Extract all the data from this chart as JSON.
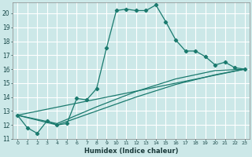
{
  "xlabel": "Humidex (Indice chaleur)",
  "bg_color": "#cce8e8",
  "grid_color": "#ffffff",
  "line_color": "#1a7a6e",
  "xlim": [
    -0.5,
    23.5
  ],
  "ylim": [
    11,
    20.8
  ],
  "xtick_labels": [
    "0",
    "1",
    "2",
    "3",
    "4",
    "5",
    "6",
    "7",
    "8",
    "9",
    "10",
    "11",
    "12",
    "13",
    "14",
    "15",
    "16",
    "17",
    "18",
    "19",
    "20",
    "21",
    "22",
    "23"
  ],
  "xticks": [
    0,
    1,
    2,
    3,
    4,
    5,
    6,
    7,
    8,
    9,
    10,
    11,
    12,
    13,
    14,
    15,
    16,
    17,
    18,
    19,
    20,
    21,
    22,
    23
  ],
  "yticks": [
    11,
    12,
    13,
    14,
    15,
    16,
    17,
    18,
    19,
    20
  ],
  "series1": [
    [
      0,
      12.7
    ],
    [
      1,
      11.8
    ],
    [
      2,
      11.4
    ],
    [
      3,
      12.3
    ],
    [
      4,
      12.0
    ],
    [
      5,
      12.1
    ],
    [
      6,
      13.9
    ],
    [
      7,
      13.8
    ],
    [
      8,
      14.6
    ],
    [
      9,
      17.5
    ],
    [
      10,
      20.2
    ],
    [
      11,
      20.3
    ],
    [
      12,
      20.2
    ],
    [
      13,
      20.2
    ],
    [
      14,
      20.6
    ],
    [
      15,
      19.4
    ],
    [
      16,
      18.1
    ],
    [
      17,
      17.3
    ],
    [
      18,
      17.3
    ],
    [
      19,
      16.9
    ],
    [
      20,
      16.3
    ],
    [
      21,
      16.5
    ],
    [
      22,
      16.1
    ],
    [
      23,
      16.0
    ]
  ],
  "series2": [
    [
      0,
      12.7
    ],
    [
      23,
      16.0
    ]
  ],
  "series3": [
    [
      0,
      12.7
    ],
    [
      4,
      12.1
    ],
    [
      8,
      13.3
    ],
    [
      12,
      14.4
    ],
    [
      16,
      15.3
    ],
    [
      20,
      15.9
    ],
    [
      23,
      16.0
    ]
  ],
  "series4": [
    [
      0,
      12.7
    ],
    [
      4,
      12.0
    ],
    [
      8,
      13.0
    ],
    [
      12,
      14.0
    ],
    [
      16,
      14.9
    ],
    [
      20,
      15.6
    ],
    [
      23,
      16.0
    ]
  ]
}
